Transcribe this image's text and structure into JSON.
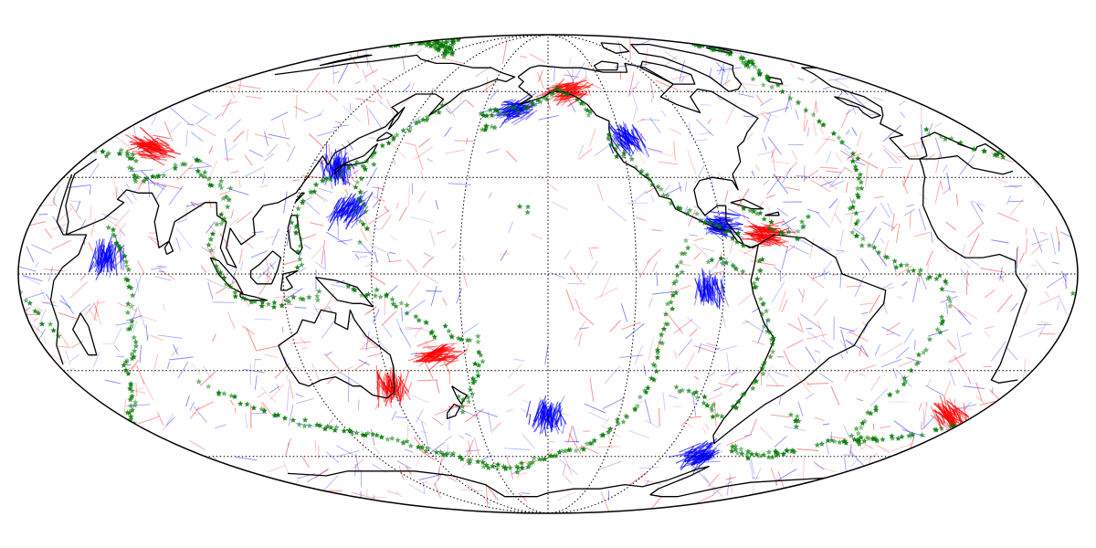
{
  "map": {
    "projection": "mollweide",
    "central_meridian_deg": -150,
    "graticule": {
      "parallels_deg": [
        -60,
        -30,
        0,
        30,
        60
      ],
      "meridians_deg": [
        -90,
        -150,
        150
      ],
      "style": "dotted"
    },
    "colors": {
      "background": "#ffffff",
      "coastline": "#000000",
      "graticule": "#000000",
      "positive_anomaly": "#ff0000",
      "negative_anomaly": "#0000ff",
      "event_marker": "#007700"
    },
    "layers": [
      {
        "name": "coastlines",
        "icon": "coastline-line"
      },
      {
        "name": "anomaly-segments",
        "icon": "line-segment"
      },
      {
        "name": "event-markers",
        "icon": "star-icon"
      }
    ],
    "hotspot_regions": [
      {
        "sign": "positive",
        "lon": -140,
        "lat": 60
      },
      {
        "sign": "negative",
        "lon": -165,
        "lat": 53
      },
      {
        "sign": "negative",
        "lon": -90,
        "lat": 15
      },
      {
        "sign": "positive",
        "lon": -75,
        "lat": 12
      },
      {
        "sign": "negative",
        "lon": -118,
        "lat": 43
      },
      {
        "sign": "negative",
        "lon": 130,
        "lat": 33
      },
      {
        "sign": "negative",
        "lon": 140,
        "lat": 20
      },
      {
        "sign": "positive",
        "lon": 52,
        "lat": 40
      },
      {
        "sign": "negative",
        "lon": 60,
        "lat": 5
      },
      {
        "sign": "positive",
        "lon": 170,
        "lat": -25
      },
      {
        "sign": "positive",
        "lon": 150,
        "lat": -35
      },
      {
        "sign": "negative",
        "lon": -150,
        "lat": -45
      },
      {
        "sign": "negative",
        "lon": -70,
        "lat": -60
      },
      {
        "sign": "negative",
        "lon": -95,
        "lat": -5
      },
      {
        "sign": "positive",
        "lon": 20,
        "lat": -45
      }
    ]
  }
}
